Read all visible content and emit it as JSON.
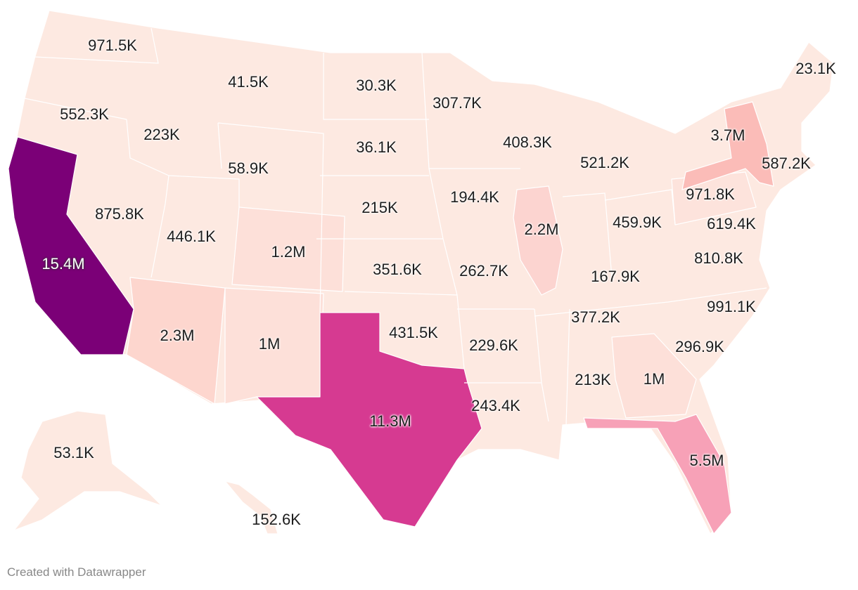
{
  "colors": {
    "base": "#fde9e1",
    "low": "#fde1d9",
    "ca": "#7b0077",
    "tx": "#d63a91",
    "fl": "#f7a1b7",
    "ny": "#fbbcb8",
    "il": "#fcd4d0",
    "az": "#fdd6ce",
    "border": "#ffffff"
  },
  "labels": [
    {
      "state": "WA",
      "value": "971.5K"
    },
    {
      "state": "OR",
      "value": "552.3K"
    },
    {
      "state": "CA",
      "value": "15.4M"
    },
    {
      "state": "ID",
      "value": "223K"
    },
    {
      "state": "NV",
      "value": "875.8K"
    },
    {
      "state": "MT",
      "value": "41.5K"
    },
    {
      "state": "WY",
      "value": "58.9K"
    },
    {
      "state": "UT",
      "value": "446.1K"
    },
    {
      "state": "AZ",
      "value": "2.3M"
    },
    {
      "state": "CO",
      "value": "1.2M"
    },
    {
      "state": "NM",
      "value": "1M"
    },
    {
      "state": "ND",
      "value": "30.3K"
    },
    {
      "state": "SD",
      "value": "36.1K"
    },
    {
      "state": "NE",
      "value": "215K"
    },
    {
      "state": "KS",
      "value": "351.6K"
    },
    {
      "state": "OK",
      "value": "431.5K"
    },
    {
      "state": "TX",
      "value": "11.3M"
    },
    {
      "state": "MN",
      "value": "307.7K"
    },
    {
      "state": "IA",
      "value": "194.4K"
    },
    {
      "state": "MO",
      "value": "262.7K"
    },
    {
      "state": "AR",
      "value": "229.6K"
    },
    {
      "state": "LA",
      "value": "243.4K"
    },
    {
      "state": "WI",
      "value": "408.3K"
    },
    {
      "state": "IL",
      "value": "2.2M"
    },
    {
      "state": "MI",
      "value": "521.2K"
    },
    {
      "state": "KY",
      "value": "167.9K"
    },
    {
      "state": "OH",
      "value": "459.9K"
    },
    {
      "state": "TN",
      "value": "377.2K"
    },
    {
      "state": "AL",
      "value": "213K"
    },
    {
      "state": "GA",
      "value": "1M"
    },
    {
      "state": "FL",
      "value": "5.5M"
    },
    {
      "state": "SC",
      "value": "296.9K"
    },
    {
      "state": "NC",
      "value": "991.1K"
    },
    {
      "state": "VA",
      "value": "810.8K"
    },
    {
      "state": "MD",
      "value": "619.4K"
    },
    {
      "state": "PA",
      "value": "971.8K"
    },
    {
      "state": "NY",
      "value": "3.7M"
    },
    {
      "state": "MA",
      "value": "587.2K"
    },
    {
      "state": "ME",
      "value": "23.1K"
    },
    {
      "state": "AK",
      "value": "53.1K"
    },
    {
      "state": "HI",
      "value": "152.6K"
    }
  ],
  "credit": "Created with Datawrapper"
}
